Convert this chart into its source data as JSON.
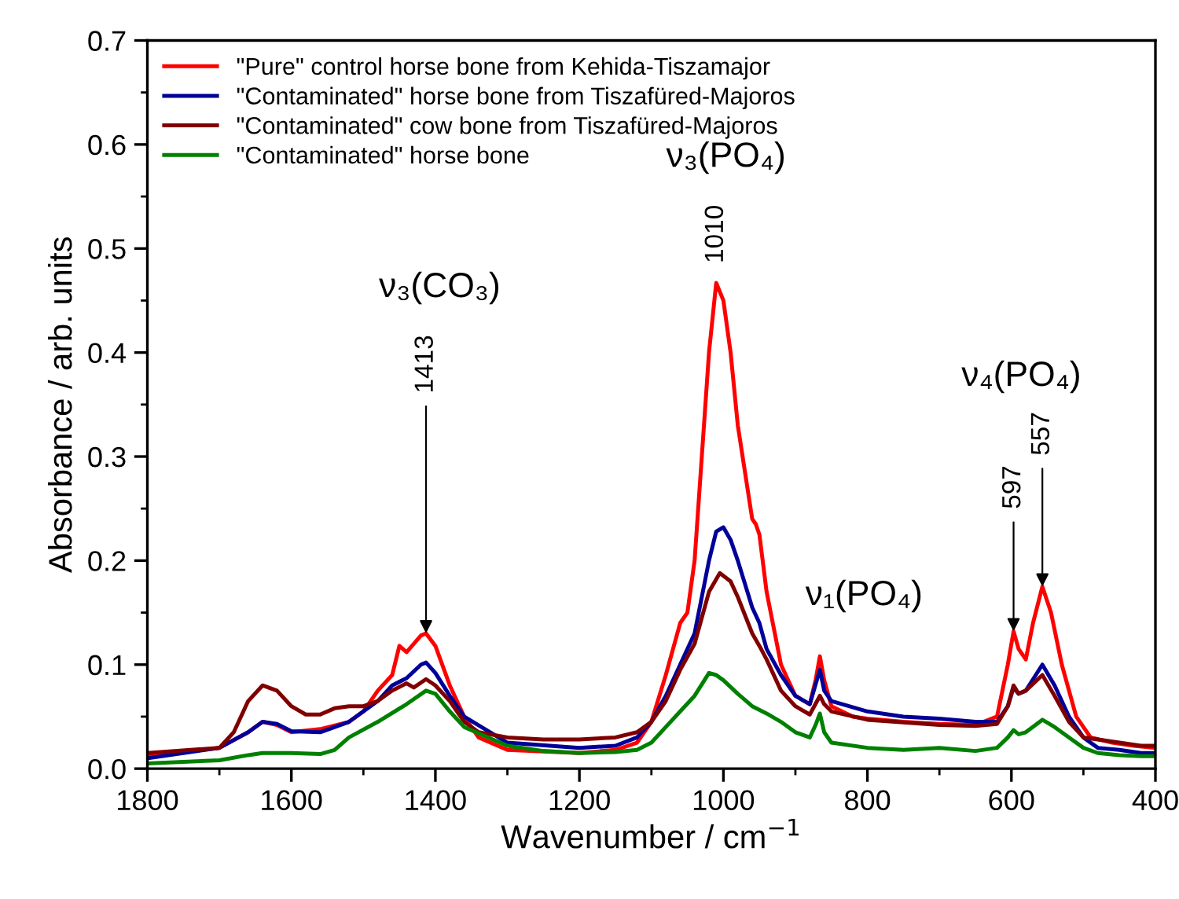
{
  "chart_data": {
    "type": "line",
    "xlabel": "Wavenumber / cm$^{−1}$",
    "ylabel": "Absorbance / arb. units",
    "xlim": [
      1800,
      400
    ],
    "xticks": [
      1800,
      1600,
      1400,
      1200,
      1000,
      800,
      600,
      400
    ],
    "ylim": [
      0,
      0.7
    ],
    "yticks": [
      {
        "value": 0,
        "label": "0.0"
      },
      0.1,
      0.2,
      0.3,
      0.4,
      0.5,
      0.6,
      0.7
    ],
    "grid": false,
    "legend": "top left",
    "marker": "none",
    "line_style": "solid",
    "series": [
      {
        "name": "\"Pure\" control horse bone from Kehida-Tiszamajor",
        "color": "#ff0000",
        "x": [
          1800,
          1700,
          1660,
          1640,
          1620,
          1600,
          1560,
          1520,
          1500,
          1480,
          1460,
          1450,
          1440,
          1420,
          1413,
          1400,
          1380,
          1360,
          1340,
          1300,
          1200,
          1150,
          1120,
          1100,
          1080,
          1060,
          1050,
          1040,
          1020,
          1010,
          1000,
          990,
          980,
          960,
          955,
          950,
          940,
          920,
          900,
          880,
          872,
          866,
          860,
          850,
          820,
          800,
          750,
          700,
          650,
          620,
          605,
          597,
          590,
          580,
          570,
          557,
          545,
          530,
          510,
          490,
          460,
          430,
          400
        ],
        "values": [
          0.012,
          0.02,
          0.035,
          0.045,
          0.042,
          0.035,
          0.038,
          0.045,
          0.055,
          0.075,
          0.09,
          0.118,
          0.112,
          0.128,
          0.13,
          0.118,
          0.08,
          0.05,
          0.03,
          0.018,
          0.015,
          0.018,
          0.025,
          0.045,
          0.09,
          0.14,
          0.15,
          0.2,
          0.4,
          0.467,
          0.45,
          0.4,
          0.33,
          0.24,
          0.235,
          0.225,
          0.17,
          0.1,
          0.07,
          0.062,
          0.085,
          0.108,
          0.085,
          0.06,
          0.05,
          0.048,
          0.045,
          0.043,
          0.042,
          0.05,
          0.1,
          0.132,
          0.115,
          0.105,
          0.14,
          0.175,
          0.15,
          0.1,
          0.05,
          0.03,
          0.025,
          0.022,
          0.02
        ]
      },
      {
        "name": "\"Contaminated\" horse bone from Tiszafüred-Majoros",
        "color": "#000099",
        "x": [
          1800,
          1700,
          1660,
          1640,
          1620,
          1600,
          1560,
          1520,
          1480,
          1460,
          1440,
          1420,
          1413,
          1400,
          1380,
          1360,
          1300,
          1200,
          1150,
          1120,
          1100,
          1080,
          1060,
          1040,
          1020,
          1010,
          1000,
          990,
          980,
          960,
          950,
          940,
          920,
          900,
          880,
          866,
          860,
          850,
          800,
          750,
          700,
          650,
          620,
          605,
          597,
          590,
          580,
          557,
          540,
          520,
          500,
          480,
          450,
          420,
          400
        ],
        "values": [
          0.01,
          0.02,
          0.035,
          0.045,
          0.043,
          0.036,
          0.035,
          0.045,
          0.065,
          0.08,
          0.087,
          0.1,
          0.102,
          0.092,
          0.07,
          0.05,
          0.025,
          0.02,
          0.022,
          0.03,
          0.045,
          0.07,
          0.1,
          0.13,
          0.2,
          0.228,
          0.232,
          0.22,
          0.2,
          0.155,
          0.14,
          0.115,
          0.09,
          0.07,
          0.062,
          0.095,
          0.075,
          0.065,
          0.055,
          0.05,
          0.048,
          0.045,
          0.045,
          0.06,
          0.078,
          0.072,
          0.075,
          0.1,
          0.08,
          0.05,
          0.03,
          0.02,
          0.018,
          0.015,
          0.015
        ]
      },
      {
        "name": "\"Contaminated\" cow bone from Tiszafüred-Majoros",
        "color": "#800000",
        "x": [
          1800,
          1700,
          1680,
          1660,
          1640,
          1620,
          1600,
          1580,
          1560,
          1540,
          1520,
          1500,
          1480,
          1460,
          1440,
          1430,
          1413,
          1400,
          1380,
          1360,
          1340,
          1300,
          1250,
          1200,
          1150,
          1120,
          1100,
          1080,
          1060,
          1040,
          1020,
          1005,
          990,
          980,
          960,
          950,
          940,
          920,
          900,
          880,
          866,
          860,
          850,
          800,
          700,
          650,
          620,
          605,
          597,
          590,
          580,
          557,
          540,
          520,
          500,
          480,
          450,
          420,
          400
        ],
        "values": [
          0.015,
          0.02,
          0.035,
          0.065,
          0.08,
          0.075,
          0.06,
          0.052,
          0.052,
          0.058,
          0.06,
          0.06,
          0.065,
          0.075,
          0.082,
          0.078,
          0.086,
          0.08,
          0.065,
          0.045,
          0.035,
          0.03,
          0.028,
          0.028,
          0.03,
          0.035,
          0.045,
          0.065,
          0.095,
          0.12,
          0.17,
          0.188,
          0.18,
          0.165,
          0.13,
          0.118,
          0.105,
          0.075,
          0.06,
          0.052,
          0.07,
          0.062,
          0.055,
          0.047,
          0.042,
          0.041,
          0.043,
          0.06,
          0.08,
          0.072,
          0.075,
          0.09,
          0.07,
          0.045,
          0.03,
          0.028,
          0.025,
          0.022,
          0.022
        ]
      },
      {
        "name": "\"Contaminated\" horse bone",
        "color": "#008000",
        "x": [
          1800,
          1700,
          1660,
          1640,
          1600,
          1560,
          1540,
          1520,
          1480,
          1440,
          1413,
          1400,
          1380,
          1360,
          1300,
          1250,
          1200,
          1150,
          1120,
          1100,
          1080,
          1060,
          1040,
          1020,
          1010,
          1000,
          980,
          960,
          940,
          920,
          900,
          880,
          872,
          866,
          860,
          850,
          800,
          750,
          700,
          650,
          620,
          605,
          597,
          590,
          580,
          557,
          540,
          520,
          500,
          480,
          450,
          420,
          400
        ],
        "values": [
          0.005,
          0.008,
          0.013,
          0.015,
          0.015,
          0.014,
          0.018,
          0.03,
          0.045,
          0.062,
          0.075,
          0.072,
          0.055,
          0.04,
          0.022,
          0.017,
          0.015,
          0.016,
          0.018,
          0.025,
          0.04,
          0.055,
          0.07,
          0.092,
          0.09,
          0.085,
          0.072,
          0.06,
          0.053,
          0.045,
          0.035,
          0.03,
          0.042,
          0.053,
          0.035,
          0.025,
          0.02,
          0.018,
          0.02,
          0.017,
          0.02,
          0.03,
          0.037,
          0.033,
          0.035,
          0.047,
          0.04,
          0.03,
          0.02,
          0.015,
          0.013,
          0.012,
          0.012
        ]
      }
    ],
    "annotations": [
      "ν₃(CO₃)",
      {
        "text": "1413",
        "x": 1413,
        "y": 0.13
      },
      "ν₃(PO₄)",
      {
        "text": "1010",
        "x": 1010,
        "y": 0.467
      },
      "ν₁(PO₄)",
      "ν₄(PO₄)",
      {
        "text": "597",
        "x": 597,
        "y": 0.132
      },
      {
        "text": "557",
        "x": 557,
        "y": 0.175
      }
    ]
  }
}
